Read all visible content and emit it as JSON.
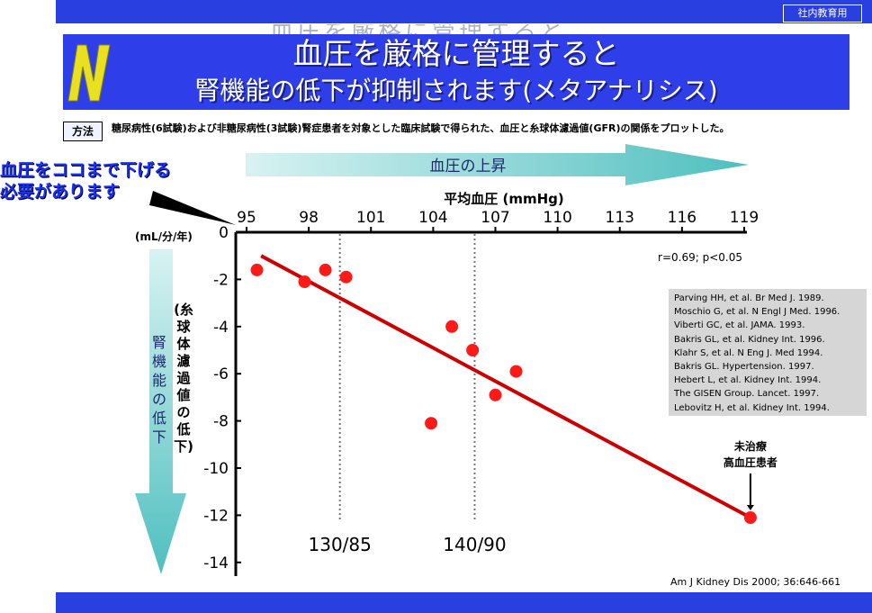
{
  "header": {
    "badge": "社内教育用"
  },
  "title": {
    "ghost": "血圧を厳格に管理すると",
    "line1": "血圧を厳格に管理すると",
    "line2": "腎機能の低下が抑制されます(メタアナリシス)"
  },
  "method": {
    "label": "方法",
    "text": "糖尿病性(6試験)および非糖尿病性(3試験)腎症患者を対象とした臨床試験で得られた、血圧と糸球体濾過値(GFR)の関係をプロットした。"
  },
  "callout": {
    "line1": "血圧をココまで下げる",
    "line2": "必要があります"
  },
  "arrows": {
    "horizontal": "血圧の上昇",
    "vertical": "腎機能の低下"
  },
  "axis_unit_left": "(mL/分/年)",
  "y_axis_title": "(糸球体濾過値の低下)",
  "chart_data": {
    "type": "scatter",
    "xlabel": "平均血圧 (mmHg)",
    "x_ticks": [
      95,
      98,
      101,
      104,
      107,
      110,
      113,
      116,
      119
    ],
    "xlim": [
      95,
      119
    ],
    "y_ticks": [
      0,
      -2,
      -4,
      -6,
      -8,
      -10,
      -12,
      -14
    ],
    "ylim": [
      -14.5,
      0
    ],
    "x_axis_position": "top",
    "points": [
      {
        "x": 95.5,
        "y": -1.6
      },
      {
        "x": 97.8,
        "y": -2.1
      },
      {
        "x": 98.8,
        "y": -1.6
      },
      {
        "x": 99.8,
        "y": -1.9
      },
      {
        "x": 103.9,
        "y": -8.1
      },
      {
        "x": 104.9,
        "y": -4.0
      },
      {
        "x": 105.9,
        "y": -5.0
      },
      {
        "x": 107.0,
        "y": -6.9
      },
      {
        "x": 108.0,
        "y": -5.9
      },
      {
        "x": 119.3,
        "y": -12.1
      }
    ],
    "regression": {
      "x1": 95.7,
      "y1": -1.0,
      "x2": 119.3,
      "y2": -12.1
    },
    "reference_lines": [
      {
        "x": 99.5,
        "label": "130/85"
      },
      {
        "x": 106.0,
        "label": "140/90"
      }
    ],
    "stats": "r=0.69; p<0.05",
    "annotation": {
      "line1": "未治療",
      "line2": "高血圧患者",
      "x": 119.3,
      "y": -12.1
    },
    "colors": {
      "points": "#ff1a1a",
      "line": "#cc0000",
      "axis": "#000000"
    }
  },
  "references": [
    "Parving HH, et al. Br Med J. 1989.",
    "Moschio G, et al. N Engl J Med. 1996.",
    "Viberti GC, et al. JAMA. 1993.",
    "Bakris GL, et al. Kidney Int. 1996.",
    "Klahr S, et al. N Eng J. Med 1994.",
    "Bakris GL. Hypertension. 1997.",
    "Hebert L, et al. Kidney Int. 1994.",
    "The GISEN Group. Lancet. 1997.",
    "Lebovitz H, et al. Kidney Int. 1994."
  ],
  "source": "Am J Kidney Dis 2000; 36:646-661",
  "colors": {
    "brand_blue": "#2a3fe0",
    "arrow_teal": "#4fbfbf"
  }
}
